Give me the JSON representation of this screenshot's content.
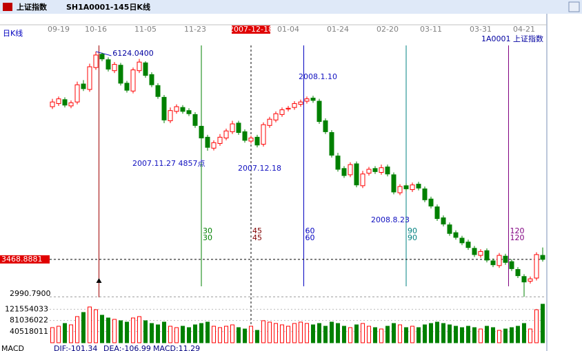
{
  "window_title": [
    "上证指数",
    "SH1A0001-145日K线"
  ],
  "chart_data": {
    "type": "candlestick",
    "period_label": "日K线",
    "symbol_label": "1A0001 上证指数",
    "categories": [
      null,
      "09-19",
      null,
      null,
      null,
      null,
      null,
      "10-16",
      null,
      null,
      null,
      null,
      null,
      null,
      null,
      "11-05",
      null,
      null,
      null,
      null,
      null,
      null,
      null,
      "11-23",
      null,
      null,
      null,
      null,
      null,
      null,
      null,
      null,
      "2007-12-18",
      null,
      null,
      null,
      null,
      null,
      "01-04",
      null,
      null,
      null,
      null,
      null,
      null,
      null,
      "01-24",
      null,
      null,
      null,
      null,
      null,
      null,
      null,
      "02-20",
      null,
      null,
      null,
      null,
      null,
      null,
      "03-11",
      null,
      null,
      null,
      null,
      null,
      null,
      null,
      "03-31",
      null,
      null,
      null,
      null,
      null,
      null,
      "04-21",
      null,
      null,
      null
    ],
    "cursor_date": "2007-12-18",
    "open": [
      5420,
      5460,
      5510,
      5430,
      5480,
      5710,
      5640,
      5920,
      6090,
      6020,
      5880,
      5950,
      5720,
      5620,
      5880,
      5980,
      5830,
      5690,
      5540,
      5240,
      5360,
      5410,
      5370,
      5320,
      5170,
      5030,
      4890,
      4950,
      5020,
      5100,
      5210,
      5100,
      4980,
      5030,
      4940,
      5180,
      5250,
      5320,
      5390,
      5410,
      5450,
      5490,
      5530,
      5490,
      5240,
      5090,
      4790,
      4630,
      4550,
      4690,
      4410,
      4570,
      4630,
      4580,
      4650,
      4550,
      4320,
      4410,
      4360,
      4430,
      4370,
      4240,
      4140,
      4000,
      3910,
      3810,
      3740,
      3690,
      3610,
      3520,
      3580,
      3450,
      3390,
      3510,
      3440,
      3340,
      3250,
      3190,
      3230,
      3520
    ],
    "high": [
      5520,
      5550,
      5540,
      5500,
      5740,
      5760,
      5970,
      6124.04,
      6110,
      6050,
      5990,
      5980,
      5750,
      5920,
      6030,
      6000,
      5860,
      5720,
      5570,
      5410,
      5450,
      5440,
      5400,
      5350,
      5200,
      5060,
      4990,
      5070,
      5140,
      5240,
      5240,
      5130,
      5050,
      5060,
      5220,
      5290,
      5360,
      5410,
      5430,
      5490,
      5510,
      5550,
      5560,
      5520,
      5270,
      5120,
      4830,
      4660,
      4710,
      4720,
      4600,
      4650,
      4660,
      4680,
      4680,
      4580,
      4430,
      4440,
      4450,
      4460,
      4400,
      4270,
      4170,
      4030,
      3940,
      3840,
      3770,
      3720,
      3640,
      3600,
      3610,
      3480,
      3550,
      3540,
      3470,
      3370,
      3280,
      3250,
      3560,
      3620
    ],
    "low": [
      5390,
      5430,
      5410,
      5400,
      5450,
      5620,
      5610,
      5890,
      6000,
      5870,
      5850,
      5690,
      5600,
      5590,
      5850,
      5790,
      5670,
      5520,
      5210,
      5210,
      5330,
      5330,
      5300,
      5150,
      4990,
      4857,
      4860,
      4920,
      4990,
      5070,
      5060,
      4960,
      4950,
      4900,
      4910,
      5150,
      5220,
      5290,
      5360,
      5380,
      5420,
      5460,
      5470,
      5200,
      5070,
      4770,
      4590,
      4510,
      4520,
      4390,
      4380,
      4540,
      4560,
      4550,
      4530,
      4300,
      4290,
      4340,
      4330,
      4350,
      4200,
      4120,
      3960,
      3890,
      3770,
      3720,
      3650,
      3590,
      3500,
      3490,
      3430,
      3370,
      3360,
      3400,
      3320,
      3230,
      2990.79,
      3160,
      3200,
      3440
    ],
    "close": [
      5480,
      5520,
      5440,
      5470,
      5700,
      5650,
      5930,
      6080,
      6030,
      5900,
      5960,
      5720,
      5630,
      5890,
      5990,
      5820,
      5700,
      5550,
      5250,
      5370,
      5420,
      5360,
      5330,
      5180,
      5020,
      4900,
      4960,
      5030,
      5110,
      5200,
      5090,
      4990,
      5020,
      4930,
      5190,
      5260,
      5330,
      5380,
      5400,
      5460,
      5480,
      5520,
      5500,
      5230,
      5100,
      4800,
      4620,
      4540,
      4680,
      4420,
      4560,
      4620,
      4590,
      4640,
      4560,
      4330,
      4400,
      4370,
      4420,
      4380,
      4230,
      4150,
      3990,
      3920,
      3800,
      3750,
      3680,
      3620,
      3530,
      3570,
      3460,
      3400,
      3520,
      3430,
      3350,
      3260,
      3180,
      3220,
      3530,
      3468.8881
    ],
    "volume": [
      55000000,
      60000000,
      70000000,
      65000000,
      95000000,
      110000000,
      130000000,
      120000000,
      100000000,
      90000000,
      85000000,
      80000000,
      75000000,
      90000000,
      95000000,
      80000000,
      70000000,
      65000000,
      75000000,
      60000000,
      55000000,
      60000000,
      55000000,
      65000000,
      70000000,
      75000000,
      60000000,
      55000000,
      60000000,
      65000000,
      55000000,
      50000000,
      60000000,
      45000000,
      80000000,
      75000000,
      70000000,
      65000000,
      60000000,
      70000000,
      75000000,
      70000000,
      65000000,
      70000000,
      60000000,
      75000000,
      70000000,
      60000000,
      55000000,
      65000000,
      70000000,
      60000000,
      55000000,
      50000000,
      60000000,
      70000000,
      65000000,
      55000000,
      60000000,
      55000000,
      65000000,
      70000000,
      75000000,
      70000000,
      65000000,
      60000000,
      55000000,
      60000000,
      55000000,
      50000000,
      60000000,
      55000000,
      45000000,
      50000000,
      55000000,
      60000000,
      70000000,
      50000000,
      120000000,
      140000000
    ],
    "ylim": [
      2984,
      6361
    ],
    "volume_ylim": [
      0,
      160000000
    ],
    "volume_ticks": [
      121554033,
      81036022,
      40518011
    ],
    "high_label": {
      "value": 6124.04,
      "label": "6124.0400"
    },
    "low_label": {
      "value": 2990.79,
      "label": "2990.7900"
    },
    "last_price": 3468.8881,
    "up_color": "#ff0000",
    "down_color": "#008000",
    "cycle_lines": [
      {
        "count": 30,
        "color": "#008000"
      },
      {
        "count": 45,
        "color": "#800000"
      },
      {
        "count": 60,
        "color": "#0000c0"
      },
      {
        "count": 90,
        "color": "#008080"
      },
      {
        "count": 120,
        "color": "#800080"
      }
    ],
    "annotations": [
      "2007.11.27 4857点",
      "2007.12.18",
      "2008.1.10",
      "2008.8.23"
    ],
    "indicator_texts": [
      "MACD",
      "DIF:-101.34",
      "DEA:-106.99",
      "MACD:11.29"
    ]
  }
}
